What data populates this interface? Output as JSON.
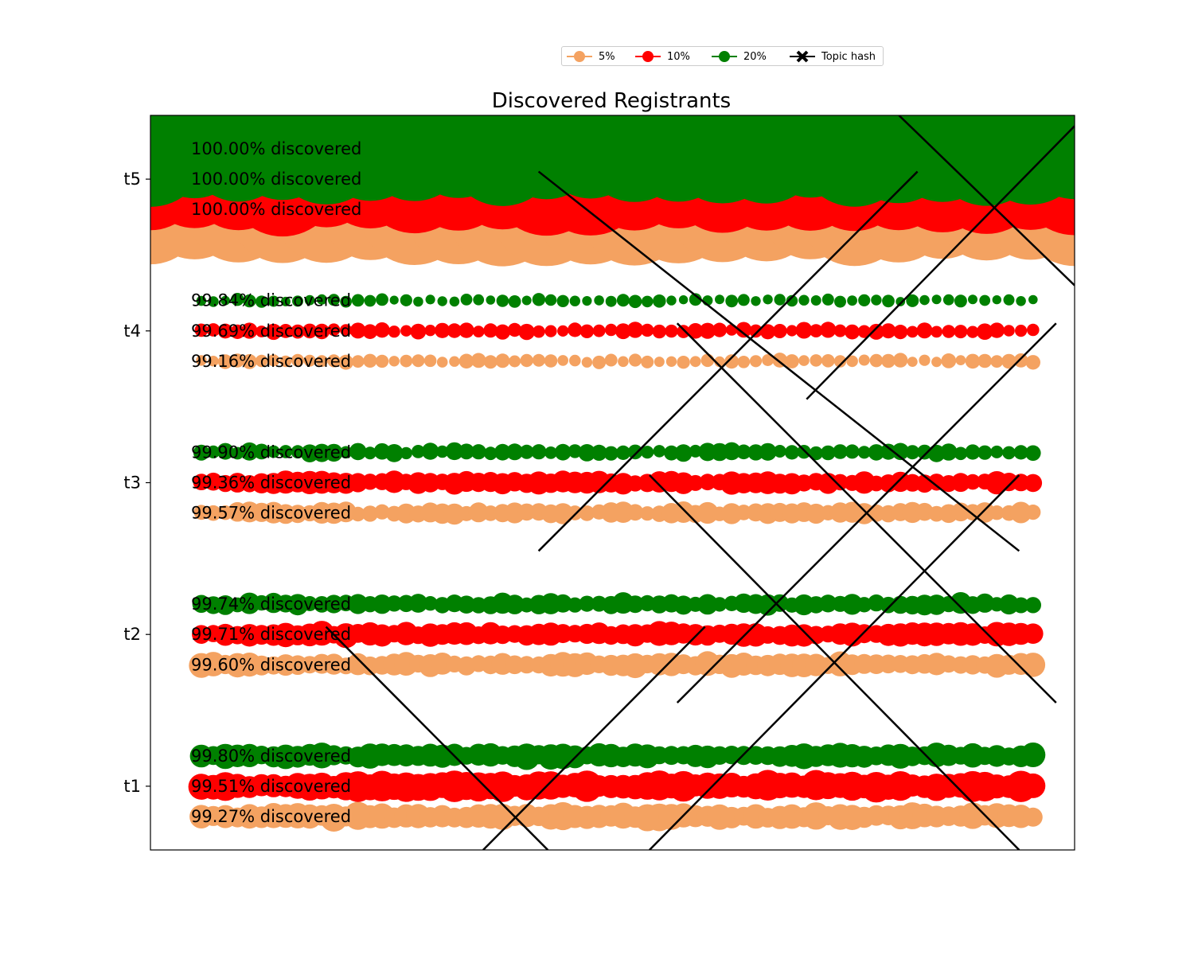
{
  "chart_data": {
    "type": "scatter",
    "title": "Discovered Registrants",
    "xlabel": "",
    "ylabel": "",
    "categories": [
      "t1",
      "t2",
      "t3",
      "t4",
      "t5"
    ],
    "ylim": [
      0.58,
      5.42
    ],
    "xlim": [
      0,
      1
    ],
    "grid": false,
    "legend_placement": "upper center, above plot",
    "series": [
      {
        "name": "5%",
        "color": "#f4a261",
        "discovered_labels": [
          "99.27% discovered",
          "99.60% discovered",
          "99.57% discovered",
          "99.16% discovered",
          "100.00% discovered"
        ],
        "discovered_pct": [
          99.27,
          99.6,
          99.57,
          99.16,
          100.0
        ]
      },
      {
        "name": "10%",
        "color": "#ff0000",
        "discovered_labels": [
          "99.51% discovered",
          "99.71% discovered",
          "99.36% discovered",
          "99.69% discovered",
          "100.00% discovered"
        ],
        "discovered_pct": [
          99.51,
          99.71,
          99.36,
          99.69,
          100.0
        ]
      },
      {
        "name": "20%",
        "color": "#008000",
        "discovered_labels": [
          "99.80% discovered",
          "99.74% discovered",
          "99.90% discovered",
          "99.84% discovered",
          "100.00% discovered"
        ],
        "discovered_pct": [
          99.8,
          99.74,
          99.9,
          99.84,
          100.0
        ]
      }
    ],
    "topic_hash": {
      "name": "Topic hash",
      "color": "#000000",
      "lines": [
        {
          "x": [
            0.19,
            0.43
          ],
          "y": [
            2.05,
            0.58
          ]
        },
        {
          "x": [
            0.36,
            0.6
          ],
          "y": [
            0.58,
            2.05
          ]
        },
        {
          "x": [
            0.42,
            0.94
          ],
          "y": [
            5.05,
            2.55
          ]
        },
        {
          "x": [
            0.42,
            0.83
          ],
          "y": [
            2.55,
            5.05
          ]
        },
        {
          "x": [
            0.54,
            0.94
          ],
          "y": [
            3.05,
            0.58
          ]
        },
        {
          "x": [
            0.54,
            0.94
          ],
          "y": [
            0.58,
            3.05
          ]
        },
        {
          "x": [
            0.57,
            0.98
          ],
          "y": [
            4.05,
            1.55
          ]
        },
        {
          "x": [
            0.57,
            0.98
          ],
          "y": [
            1.55,
            4.05
          ]
        },
        {
          "x": [
            0.71,
            1.0
          ],
          "y": [
            3.55,
            5.35
          ]
        },
        {
          "x": [
            0.81,
            1.0
          ],
          "y": [
            5.42,
            4.3
          ]
        }
      ]
    }
  }
}
